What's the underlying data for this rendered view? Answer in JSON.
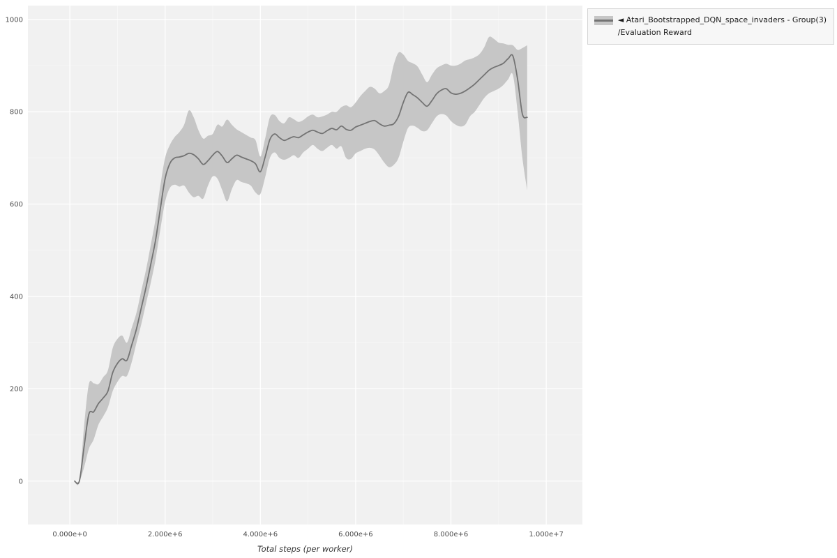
{
  "chart_data": {
    "type": "line",
    "title": "",
    "xlabel": "Total steps (per worker)",
    "ylabel": "",
    "legend": {
      "position": "top-right-outside",
      "line1": "◄ Atari_Bootstrapped_DQN_space_invaders - Group(3)",
      "line2": "/Evaluation Reward"
    },
    "axes": {
      "xlim": [
        -880000,
        10760000
      ],
      "ylim": [
        -94,
        1030
      ],
      "x_ticks": [
        0,
        2000000,
        4000000,
        6000000,
        8000000,
        10000000
      ],
      "x_tick_labels": [
        "0.000e+0",
        "2.000e+6",
        "4.000e+6",
        "6.000e+6",
        "8.000e+6",
        "1.000e+7"
      ],
      "x_minor_ticks": [
        1000000,
        3000000,
        5000000,
        7000000,
        9000000
      ],
      "y_ticks": [
        0,
        200,
        400,
        600,
        800,
        1000
      ],
      "y_tick_labels": [
        "0",
        "200",
        "400",
        "600",
        "800",
        "1000"
      ],
      "y_minor_ticks": [
        100,
        300,
        500,
        700,
        900
      ],
      "grid": true
    },
    "style": {
      "panel_bg": "#f1f1f1",
      "grid_major": "#ffffff",
      "grid_minor": "#ffffff",
      "line_color": "#737373",
      "band_color": "#c6c6c6",
      "tick_label_color": "#4d4d4d",
      "axis_title_color": "#333333",
      "legend_bg": "#f7f7f7",
      "legend_border": "#d4d4d4",
      "legend_text_color": "#1a1a1a"
    },
    "series": [
      {
        "name": "Atari_Bootstrapped_DQN_space_invaders - Group(3)/Evaluation Reward",
        "x": [
          100000,
          200000,
          300000,
          400000,
          500000,
          600000,
          700000,
          800000,
          900000,
          1000000,
          1100000,
          1200000,
          1300000,
          1400000,
          1500000,
          1600000,
          1700000,
          1800000,
          1900000,
          2000000,
          2100000,
          2200000,
          2300000,
          2400000,
          2500000,
          2600000,
          2700000,
          2800000,
          2900000,
          3000000,
          3100000,
          3200000,
          3300000,
          3400000,
          3500000,
          3600000,
          3700000,
          3800000,
          3900000,
          4000000,
          4100000,
          4200000,
          4300000,
          4400000,
          4500000,
          4600000,
          4700000,
          4800000,
          4900000,
          5000000,
          5100000,
          5200000,
          5300000,
          5400000,
          5500000,
          5600000,
          5700000,
          5800000,
          5900000,
          6000000,
          6100000,
          6200000,
          6300000,
          6400000,
          6500000,
          6600000,
          6700000,
          6800000,
          6900000,
          7000000,
          7100000,
          7200000,
          7300000,
          7400000,
          7500000,
          7600000,
          7700000,
          7800000,
          7900000,
          8000000,
          8100000,
          8200000,
          8300000,
          8400000,
          8500000,
          8600000,
          8700000,
          8800000,
          8900000,
          9000000,
          9100000,
          9200000,
          9300000,
          9400000,
          9500000,
          9600000
        ],
        "mean": [
          0,
          0,
          75,
          145,
          150,
          168,
          180,
          195,
          235,
          255,
          265,
          262,
          295,
          330,
          375,
          420,
          470,
          522,
          590,
          655,
          688,
          700,
          702,
          705,
          710,
          707,
          698,
          686,
          694,
          706,
          714,
          704,
          690,
          698,
          706,
          702,
          698,
          694,
          687,
          670,
          702,
          740,
          752,
          744,
          738,
          742,
          746,
          744,
          750,
          756,
          760,
          756,
          753,
          759,
          764,
          761,
          769,
          762,
          760,
          767,
          771,
          775,
          779,
          781,
          774,
          769,
          771,
          774,
          790,
          820,
          842,
          837,
          830,
          820,
          812,
          824,
          839,
          847,
          850,
          841,
          838,
          840,
          845,
          852,
          860,
          870,
          880,
          890,
          896,
          900,
          905,
          915,
          921,
          870,
          795,
          788
        ],
        "lower": [
          0,
          0,
          30,
          70,
          90,
          122,
          140,
          160,
          195,
          215,
          228,
          228,
          258,
          300,
          340,
          385,
          430,
          480,
          545,
          605,
          635,
          642,
          638,
          640,
          625,
          615,
          618,
          612,
          640,
          660,
          655,
          630,
          606,
          632,
          652,
          648,
          645,
          640,
          625,
          622,
          658,
          700,
          712,
          700,
          696,
          700,
          706,
          700,
          712,
          720,
          728,
          720,
          715,
          722,
          728,
          720,
          725,
          700,
          698,
          710,
          715,
          720,
          722,
          718,
          705,
          690,
          680,
          685,
          700,
          735,
          765,
          770,
          765,
          758,
          760,
          775,
          790,
          795,
          792,
          780,
          772,
          768,
          772,
          790,
          800,
          815,
          830,
          840,
          845,
          850,
          858,
          870,
          880,
          800,
          700,
          630
        ],
        "upper": [
          0,
          0,
          120,
          210,
          212,
          210,
          225,
          240,
          288,
          308,
          315,
          300,
          332,
          365,
          412,
          458,
          512,
          568,
          640,
          700,
          728,
          745,
          756,
          772,
          803,
          788,
          760,
          742,
          748,
          752,
          772,
          768,
          783,
          772,
          762,
          756,
          750,
          744,
          738,
          703,
          742,
          788,
          793,
          780,
          775,
          788,
          784,
          778,
          782,
          790,
          794,
          788,
          790,
          794,
          800,
          800,
          810,
          814,
          810,
          820,
          834,
          845,
          854,
          850,
          840,
          845,
          858,
          902,
          928,
          924,
          910,
          905,
          898,
          880,
          864,
          880,
          894,
          900,
          904,
          900,
          900,
          904,
          911,
          914,
          918,
          925,
          940,
          962,
          958,
          950,
          948,
          945,
          944,
          934,
          938,
          944
        ]
      }
    ]
  }
}
